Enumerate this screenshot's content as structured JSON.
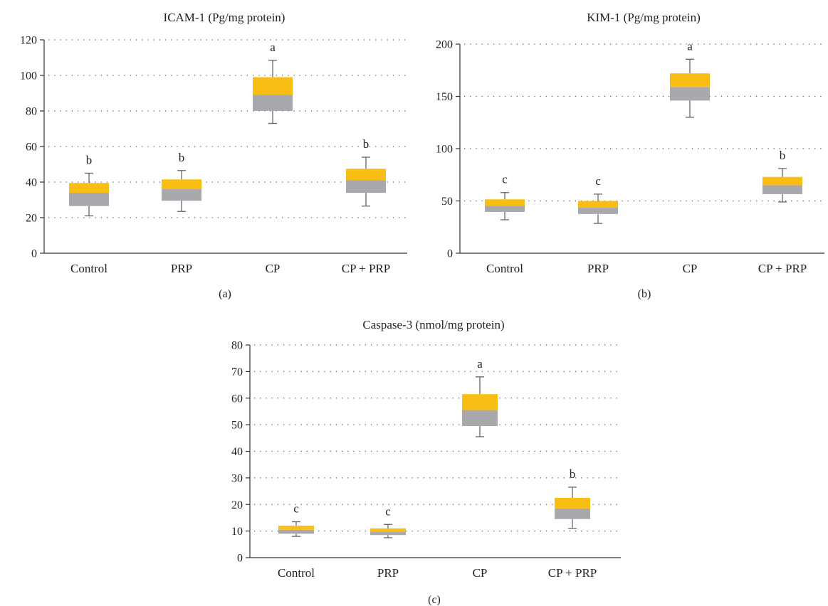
{
  "colors": {
    "upper_box": "#F9BE14",
    "lower_box": "#A9A9AD"
  },
  "chart_data": [
    {
      "panel": "(a)",
      "type": "box",
      "title": "ICAM-1 (Pg/mg protein)",
      "xlabel": "",
      "ylabel": "",
      "categories": [
        "Control",
        "PRP",
        "CP",
        "CP + PRP"
      ],
      "ylim": [
        0,
        120
      ],
      "yticks": [
        0,
        20,
        40,
        60,
        80,
        100,
        120
      ],
      "grid": true,
      "boxes": [
        {
          "min": 21,
          "q1": 26.5,
          "median": 34,
          "q3": 39.5,
          "max": 45,
          "letter": "b"
        },
        {
          "min": 23.5,
          "q1": 29.5,
          "median": 36,
          "q3": 41.5,
          "max": 46.5,
          "letter": "b"
        },
        {
          "min": 73,
          "q1": 80,
          "median": 89,
          "q3": 99,
          "max": 108.5,
          "letter": "a"
        },
        {
          "min": 26.5,
          "q1": 34,
          "median": 41,
          "q3": 47.5,
          "max": 54,
          "letter": "b"
        }
      ]
    },
    {
      "panel": "(b)",
      "type": "box",
      "title": "KIM-1 (Pg/mg protein)",
      "xlabel": "",
      "ylabel": "",
      "categories": [
        "Control",
        "PRP",
        "CP",
        "CP + PRP"
      ],
      "ylim": [
        0,
        200
      ],
      "yticks": [
        0,
        50,
        100,
        150,
        200
      ],
      "grid": true,
      "boxes": [
        {
          "min": 32,
          "q1": 39.5,
          "median": 45.5,
          "q3": 51.5,
          "max": 58,
          "letter": "c"
        },
        {
          "min": 28.5,
          "q1": 37.5,
          "median": 43.5,
          "q3": 50,
          "max": 56.5,
          "letter": "c"
        },
        {
          "min": 130,
          "q1": 146,
          "median": 159,
          "q3": 172,
          "max": 185.5,
          "letter": "a"
        },
        {
          "min": 49,
          "q1": 56.5,
          "median": 65,
          "q3": 73,
          "max": 81,
          "letter": "b"
        }
      ]
    },
    {
      "panel": "(c)",
      "type": "box",
      "title": "Caspase-3 (nmol/mg protein)",
      "xlabel": "",
      "ylabel": "",
      "categories": [
        "Control",
        "PRP",
        "CP",
        "CP + PRP"
      ],
      "ylim": [
        0,
        80
      ],
      "yticks": [
        0,
        10,
        20,
        30,
        40,
        50,
        60,
        70,
        80
      ],
      "grid": true,
      "boxes": [
        {
          "min": 8,
          "q1": 9,
          "median": 10.5,
          "q3": 12,
          "max": 13.5,
          "letter": "c"
        },
        {
          "min": 7.5,
          "q1": 8.5,
          "median": 9.8,
          "q3": 11,
          "max": 12.5,
          "letter": "c"
        },
        {
          "min": 45.5,
          "q1": 49.5,
          "median": 55.5,
          "q3": 61.5,
          "max": 68,
          "letter": "a"
        },
        {
          "min": 11,
          "q1": 14.5,
          "median": 18.5,
          "q3": 22.5,
          "max": 26.5,
          "letter": "b"
        }
      ]
    }
  ]
}
